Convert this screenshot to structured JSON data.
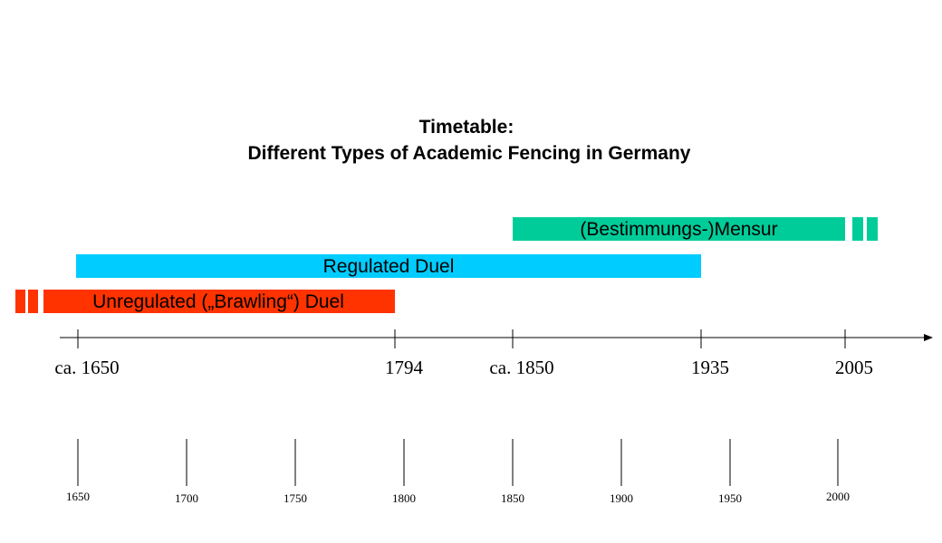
{
  "title": {
    "line1": "Timetable:",
    "line2": "Different Types of Academic Fencing in Germany"
  },
  "colors": {
    "unregulated": "#ff3300",
    "regulated": "#00ccff",
    "mensur": "#00cc99",
    "axis": "#000000"
  },
  "periods": [
    {
      "key": "mensur",
      "label": "(Bestimmungs-)Mensur",
      "start": 1850,
      "end": 2005,
      "continues_after": true,
      "continues_before": false,
      "color": "#00cc99"
    },
    {
      "key": "regulated",
      "label": "Regulated Duel",
      "start": 1650,
      "end": 1935,
      "continues_after": false,
      "continues_before": false,
      "color": "#00ccff"
    },
    {
      "key": "unregulated",
      "label": "Unregulated („Brawling“) Duel",
      "start": 1650,
      "end": 1794,
      "continues_after": false,
      "continues_before": true,
      "color": "#ff3300"
    }
  ],
  "events": [
    {
      "year": 1650,
      "label": "ca. 1650"
    },
    {
      "year": 1794,
      "label": "1794"
    },
    {
      "year": 1850,
      "label": "ca. 1850"
    },
    {
      "year": 1935,
      "label": "1935"
    },
    {
      "year": 2005,
      "label": "2005"
    }
  ],
  "scale_ticks": [
    "1650",
    "1700",
    "1750",
    "1800",
    "1850",
    "1900",
    "1950",
    "2000"
  ]
}
